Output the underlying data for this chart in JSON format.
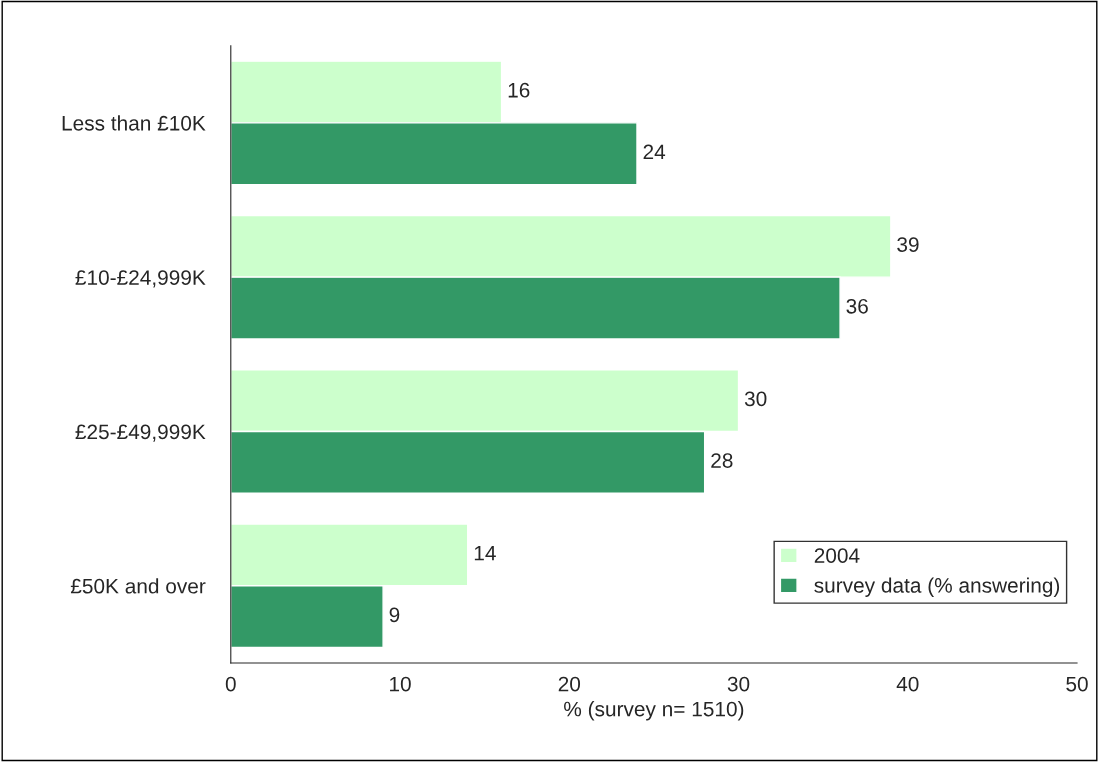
{
  "chart_data": {
    "type": "bar",
    "orientation": "horizontal",
    "categories": [
      "Less than £10K",
      "£10-£24,999K",
      "£25-£49,999K",
      "£50K and over"
    ],
    "series": [
      {
        "name": "2004",
        "color": "#ccffcc",
        "values": [
          16,
          39,
          30,
          14
        ]
      },
      {
        "name": "survey data (% answering)",
        "color": "#339966",
        "values": [
          24,
          36,
          28,
          9
        ]
      }
    ],
    "xlabel": "% (survey n= 1510)",
    "xlim": [
      0,
      50
    ],
    "xticks": [
      0,
      10,
      20,
      30,
      40,
      50
    ],
    "data_labels": true,
    "legend": "bottom right",
    "grid": false
  }
}
